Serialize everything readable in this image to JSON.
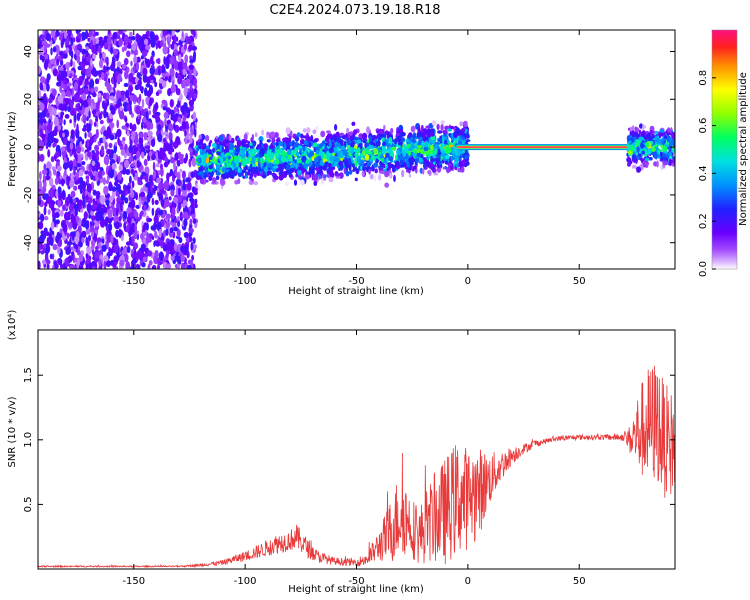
{
  "title": "C2E4.2024.073.19.18.R18",
  "colors": {
    "line": "#e83a3a",
    "axis": "#000000",
    "background": "#ffffff"
  },
  "chart_data": [
    {
      "type": "heatmap",
      "xlabel": "Height of straight line (km)",
      "ylabel": "Frequency (Hz)",
      "xlim": [
        -193,
        93
      ],
      "ylim": [
        -51,
        49
      ],
      "xticks": [
        -150,
        -100,
        -50,
        0,
        50
      ],
      "yticks": [
        -40,
        -20,
        0,
        20,
        40
      ],
      "colorbar": {
        "label": "Normalized spectral amplitude",
        "range": [
          0,
          1
        ],
        "ticks": [
          "0.0",
          "0.2",
          "0.4",
          "0.6",
          "0.8"
        ]
      },
      "features": [
        {
          "kind": "noise",
          "x_range": [
            -193,
            -122
          ],
          "freq_range": [
            -51,
            49
          ],
          "amplitude": 0.15
        },
        {
          "kind": "band",
          "x_range": [
            -122,
            0
          ],
          "center_freq_start": -6,
          "center_freq_end": 0,
          "width_hz": 10,
          "amplitude": 0.3
        },
        {
          "kind": "tone",
          "x_range": [
            -5,
            72
          ],
          "freq": 0,
          "amplitude": 1.0
        },
        {
          "kind": "band",
          "x_range": [
            72,
            93
          ],
          "center_freq": 0,
          "width_hz": 8,
          "amplitude": 0.3
        }
      ],
      "grid": false,
      "legend": "none"
    },
    {
      "type": "line",
      "xlabel": "Height of straight line (km)",
      "ylabel": "SNR (10 * v/v)",
      "y_multiplier": "(x10⁴)",
      "xlim": [
        -193,
        93
      ],
      "ylim": [
        0,
        1.85
      ],
      "xticks": [
        -150,
        -100,
        -50,
        0,
        50
      ],
      "yticks": [
        0.5,
        1.0,
        1.5
      ],
      "series": [
        {
          "x": [
            -193,
            -170,
            -150,
            -130,
            -120,
            -110,
            -100,
            -92,
            -85,
            -80,
            -77,
            -73,
            -68,
            -60,
            -50,
            -45,
            -40,
            -35,
            -30,
            -26,
            -22,
            -18,
            -10,
            -5,
            0,
            5,
            10,
            15,
            20,
            25,
            30,
            35,
            40,
            50,
            60,
            70,
            73,
            76,
            80,
            85,
            88,
            93
          ],
          "y": [
            0.02,
            0.02,
            0.02,
            0.02,
            0.03,
            0.05,
            0.1,
            0.15,
            0.2,
            0.22,
            0.25,
            0.18,
            0.1,
            0.06,
            0.05,
            0.08,
            0.18,
            0.28,
            0.45,
            0.35,
            0.25,
            0.35,
            0.45,
            0.55,
            0.55,
            0.6,
            0.7,
            0.8,
            0.88,
            0.93,
            0.97,
            0.99,
            1.01,
            1.02,
            1.02,
            1.02,
            1.0,
            1.05,
            1.1,
            1.15,
            1.0,
            0.95
          ],
          "noise": [
            0.005,
            0.005,
            0.005,
            0.005,
            0.01,
            0.02,
            0.04,
            0.06,
            0.08,
            0.08,
            0.1,
            0.08,
            0.05,
            0.03,
            0.03,
            0.06,
            0.12,
            0.25,
            0.35,
            0.25,
            0.22,
            0.3,
            0.42,
            0.45,
            0.4,
            0.35,
            0.2,
            0.12,
            0.07,
            0.04,
            0.03,
            0.02,
            0.02,
            0.02,
            0.02,
            0.03,
            0.12,
            0.3,
            0.45,
            0.5,
            0.45,
            0.4
          ]
        }
      ],
      "grid": false,
      "legend": "none"
    }
  ]
}
